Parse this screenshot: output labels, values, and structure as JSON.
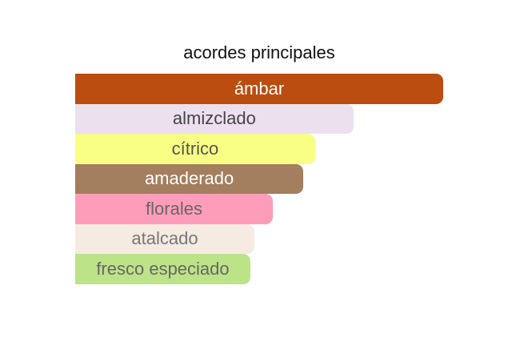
{
  "chart_data": {
    "type": "bar",
    "orientation": "horizontal",
    "title": "acordes principales",
    "categories": [
      "ámbar",
      "almizclado",
      "cítrico",
      "amaderado",
      "florales",
      "atalcado",
      "fresco especiado"
    ],
    "values": [
      100,
      75.6,
      65.2,
      62.0,
      53.7,
      48.7,
      47.6
    ],
    "colors": [
      "#bb4d10",
      "#ece0ef",
      "#f9ff84",
      "#a37e5f",
      "#fe9db9",
      "#f5ebe3",
      "#bde388"
    ],
    "text_colors": [
      "#ffffff",
      "#444444",
      "#555555",
      "#ffffff",
      "#666666",
      "#777777",
      "#666666"
    ],
    "xlim": [
      0,
      100
    ],
    "grid": false
  }
}
